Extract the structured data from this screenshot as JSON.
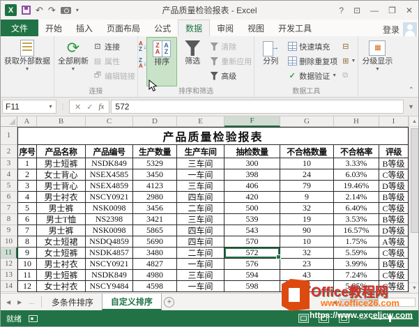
{
  "titlebar": {
    "title": "产品质量检验报表 - Excel",
    "qat": {
      "undo": "↶",
      "redo": "↷",
      "caret": "▾"
    },
    "window": {
      "help": "?",
      "ribbon_options": "⊡",
      "minimize": "—",
      "restore": "❐",
      "close": "✕"
    }
  },
  "tabs": {
    "file": "文件",
    "items": [
      "开始",
      "插入",
      "页面布局",
      "公式",
      "数据",
      "审阅",
      "视图",
      "开发工具"
    ],
    "active": "数据",
    "signin": "登录"
  },
  "ribbon": {
    "get_external_data": "获取外部数据",
    "refresh_all": "全部刷新",
    "connections": "连接",
    "properties": "属性",
    "edit_links": "编辑链接",
    "group_connections": "连接",
    "sort": "排序",
    "filter": "筛选",
    "clear": "清除",
    "reapply": "重新应用",
    "advanced": "高级",
    "group_sort_filter": "排序和筛选",
    "text_to_columns": "分列",
    "flash_fill": "快速填充",
    "remove_duplicates": "删除重复项",
    "data_validation": "数据验证",
    "group_data_tools": "数据工具",
    "outline": "分级显示"
  },
  "formula_bar": {
    "name_box": "F11",
    "cancel": "✕",
    "enter": "✓",
    "fx": "fx",
    "value": "572"
  },
  "grid": {
    "columns": [
      "A",
      "B",
      "C",
      "D",
      "E",
      "F",
      "G",
      "H",
      "I"
    ],
    "selected_column": "F",
    "selected_row": 11,
    "selected_cell": "F11",
    "title": "产品质量检验报表",
    "headers": [
      "序号",
      "产品名称",
      "产品编号",
      "生产数量",
      "生产车间",
      "抽检数量",
      "不合格数量",
      "不合格率",
      "评级"
    ],
    "rows": [
      [
        "1",
        "男士短裤",
        "NSDK849",
        "5329",
        "三车间",
        "300",
        "10",
        "3.33%",
        "B等级"
      ],
      [
        "2",
        "女士背心",
        "NSEX4585",
        "3450",
        "一车间",
        "398",
        "24",
        "6.03%",
        "C等级"
      ],
      [
        "3",
        "男士背心",
        "NSEX4859",
        "4123",
        "三车间",
        "406",
        "79",
        "19.46%",
        "D等级"
      ],
      [
        "4",
        "男士衬衣",
        "NSCY0921",
        "2980",
        "四车间",
        "420",
        "9",
        "2.14%",
        "B等级"
      ],
      [
        "5",
        "男士裤",
        "NSK0098",
        "3456",
        "二车间",
        "500",
        "32",
        "6.40%",
        "C等级"
      ],
      [
        "6",
        "男士T恤",
        "NS2398",
        "3421",
        "三车间",
        "539",
        "19",
        "3.53%",
        "B等级"
      ],
      [
        "7",
        "男士裤",
        "NSK0098",
        "5865",
        "四车间",
        "543",
        "90",
        "16.57%",
        "D等级"
      ],
      [
        "8",
        "女士短裙",
        "NSDQ4859",
        "5690",
        "四车间",
        "570",
        "10",
        "1.75%",
        "A等级"
      ],
      [
        "9",
        "女士短裤",
        "NSDK4857",
        "3480",
        "二车间",
        "572",
        "32",
        "5.59%",
        "C等级"
      ],
      [
        "10",
        "男士衬衣",
        "NSCY0921",
        "4827",
        "一车间",
        "576",
        "23",
        "3.99%",
        "B等级"
      ],
      [
        "11",
        "男士短裤",
        "NSDK849",
        "4980",
        "三车间",
        "594",
        "43",
        "7.24%",
        "C等级"
      ],
      [
        "12",
        "女士衬衣",
        "NSCY9484",
        "4598",
        "一车间",
        "598",
        "35",
        "5.85%",
        "C等级"
      ]
    ]
  },
  "sheet_tabs": {
    "ellipsis": "...",
    "tabs": [
      "多条件排序",
      "自定义排序"
    ],
    "active": "自定义排序",
    "add": "+"
  },
  "status_bar": {
    "mode": "就绪"
  },
  "watermark": {
    "site": "Office教程网",
    "url1": "www.office26.com",
    "url2": "https://www.exceljcw.com"
  },
  "colors": {
    "excel_green": "#217346",
    "sort_highlight": "#c9e3c9",
    "watermark_orange": "#dd4a10"
  }
}
